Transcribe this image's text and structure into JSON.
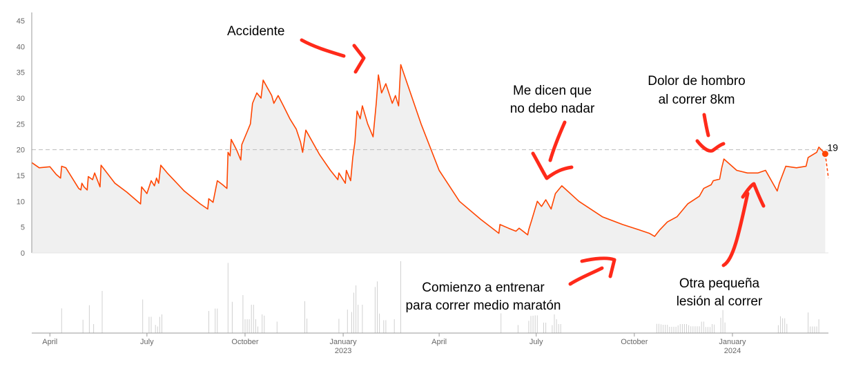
{
  "chart_data": {
    "type": "area",
    "title": "",
    "xlabel": "",
    "ylabel": "",
    "x_range": [
      "2022-03-15",
      "2024-03-31"
    ],
    "ylim": [
      0,
      45
    ],
    "yticks": [
      0,
      5,
      10,
      15,
      20,
      25,
      30,
      35,
      40,
      45
    ],
    "grid": false,
    "reference_line": {
      "y": 20,
      "style": "dashed"
    },
    "colors": {
      "line": "#ff4500",
      "area": "#f0f0f0",
      "annotation": "#ff2a1a",
      "axis": "#999999",
      "bars": "#d0d0d0"
    },
    "x_ticks": [
      {
        "date": "2022-04-01",
        "label": "April",
        "sublabel": ""
      },
      {
        "date": "2022-07-01",
        "label": "July",
        "sublabel": ""
      },
      {
        "date": "2022-10-01",
        "label": "October",
        "sublabel": ""
      },
      {
        "date": "2023-01-01",
        "label": "January",
        "sublabel": "2023"
      },
      {
        "date": "2023-04-01",
        "label": "April",
        "sublabel": ""
      },
      {
        "date": "2023-07-01",
        "label": "July",
        "sublabel": ""
      },
      {
        "date": "2023-10-01",
        "label": "October",
        "sublabel": ""
      },
      {
        "date": "2024-01-01",
        "label": "January",
        "sublabel": "2024"
      }
    ],
    "series": [
      {
        "points": [
          [
            "2022-03-15",
            17.5
          ],
          [
            "2022-03-22",
            16.5
          ],
          [
            "2022-04-01",
            16.7
          ],
          [
            "2022-04-07",
            15.2
          ],
          [
            "2022-04-11",
            14.5
          ],
          [
            "2022-04-12",
            16.8
          ],
          [
            "2022-04-16",
            16.5
          ],
          [
            "2022-04-28",
            12.5
          ],
          [
            "2022-04-30",
            12.2
          ],
          [
            "2022-05-01",
            13.5
          ],
          [
            "2022-05-03",
            12.8
          ],
          [
            "2022-05-06",
            12.2
          ],
          [
            "2022-05-07",
            14.8
          ],
          [
            "2022-05-11",
            14.2
          ],
          [
            "2022-05-13",
            15.5
          ],
          [
            "2022-05-18",
            12.8
          ],
          [
            "2022-05-19",
            17.0
          ],
          [
            "2022-06-01",
            13.5
          ],
          [
            "2022-06-12",
            11.8
          ],
          [
            "2022-06-25",
            9.5
          ],
          [
            "2022-06-26",
            12.8
          ],
          [
            "2022-07-01",
            11.5
          ],
          [
            "2022-07-05",
            14.0
          ],
          [
            "2022-07-08",
            13.0
          ],
          [
            "2022-07-10",
            14.5
          ],
          [
            "2022-07-12",
            13.5
          ],
          [
            "2022-07-14",
            17.0
          ],
          [
            "2022-07-20",
            15.5
          ],
          [
            "2022-08-05",
            12.0
          ],
          [
            "2022-08-20",
            9.5
          ],
          [
            "2022-08-27",
            8.5
          ],
          [
            "2022-08-28",
            10.5
          ],
          [
            "2022-09-01",
            9.8
          ],
          [
            "2022-09-05",
            14.0
          ],
          [
            "2022-09-10",
            13.2
          ],
          [
            "2022-09-14",
            12.5
          ],
          [
            "2022-09-15",
            19.5
          ],
          [
            "2022-09-17",
            18.8
          ],
          [
            "2022-09-18",
            22.0
          ],
          [
            "2022-09-23",
            20.0
          ],
          [
            "2022-09-27",
            18.0
          ],
          [
            "2022-09-28",
            21.0
          ],
          [
            "2022-10-03",
            23.5
          ],
          [
            "2022-10-06",
            25.0
          ],
          [
            "2022-10-08",
            29.0
          ],
          [
            "2022-10-12",
            31.0
          ],
          [
            "2022-10-16",
            30.0
          ],
          [
            "2022-10-18",
            33.5
          ],
          [
            "2022-10-22",
            32.0
          ],
          [
            "2022-10-26",
            30.5
          ],
          [
            "2022-10-28",
            29.0
          ],
          [
            "2022-11-01",
            30.5
          ],
          [
            "2022-11-06",
            28.5
          ],
          [
            "2022-11-12",
            26.0
          ],
          [
            "2022-11-18",
            24.0
          ],
          [
            "2022-11-22",
            21.5
          ],
          [
            "2022-11-24",
            19.5
          ],
          [
            "2022-11-27",
            23.8
          ],
          [
            "2022-12-10",
            19.0
          ],
          [
            "2022-12-20",
            16.0
          ],
          [
            "2022-12-27",
            14.2
          ],
          [
            "2022-12-28",
            15.5
          ],
          [
            "2023-01-03",
            13.5
          ],
          [
            "2023-01-04",
            16.0
          ],
          [
            "2023-01-08",
            14.0
          ],
          [
            "2023-01-10",
            18.5
          ],
          [
            "2023-01-12",
            21.5
          ],
          [
            "2023-01-14",
            27.5
          ],
          [
            "2023-01-17",
            26.0
          ],
          [
            "2023-01-19",
            28.5
          ],
          [
            "2023-01-24",
            25.0
          ],
          [
            "2023-01-29",
            22.5
          ],
          [
            "2023-02-01",
            29.0
          ],
          [
            "2023-02-03",
            34.5
          ],
          [
            "2023-02-06",
            31.0
          ],
          [
            "2023-02-10",
            32.8
          ],
          [
            "2023-02-16",
            29.0
          ],
          [
            "2023-02-19",
            30.5
          ],
          [
            "2023-02-22",
            28.5
          ],
          [
            "2023-02-24",
            36.5
          ],
          [
            "2023-03-15",
            25.0
          ],
          [
            "2023-04-01",
            16.0
          ],
          [
            "2023-04-20",
            10.0
          ],
          [
            "2023-05-10",
            6.5
          ],
          [
            "2023-05-27",
            3.8
          ],
          [
            "2023-05-28",
            5.5
          ],
          [
            "2023-06-05",
            4.8
          ],
          [
            "2023-06-12",
            4.2
          ],
          [
            "2023-06-15",
            4.8
          ],
          [
            "2023-06-23",
            3.5
          ],
          [
            "2023-06-24",
            4.5
          ],
          [
            "2023-06-27",
            6.5
          ],
          [
            "2023-07-02",
            10.0
          ],
          [
            "2023-07-06",
            9.0
          ],
          [
            "2023-07-10",
            10.3
          ],
          [
            "2023-07-15",
            8.5
          ],
          [
            "2023-07-19",
            11.5
          ],
          [
            "2023-07-25",
            13.0
          ],
          [
            "2023-08-10",
            10.0
          ],
          [
            "2023-09-01",
            7.0
          ],
          [
            "2023-09-20",
            5.5
          ],
          [
            "2023-10-05",
            4.5
          ],
          [
            "2023-10-15",
            3.8
          ],
          [
            "2023-10-20",
            3.2
          ],
          [
            "2023-10-25",
            4.5
          ],
          [
            "2023-11-01",
            6.0
          ],
          [
            "2023-11-10",
            7.0
          ],
          [
            "2023-11-20",
            9.5
          ],
          [
            "2023-12-01",
            11.0
          ],
          [
            "2023-12-05",
            12.5
          ],
          [
            "2023-12-12",
            13.2
          ],
          [
            "2023-12-14",
            14.0
          ],
          [
            "2023-12-20",
            14.3
          ],
          [
            "2023-12-22",
            16.5
          ],
          [
            "2023-12-24",
            18.2
          ],
          [
            "2024-01-05",
            16.0
          ],
          [
            "2024-01-15",
            15.5
          ],
          [
            "2024-01-25",
            15.5
          ],
          [
            "2024-02-01",
            16.0
          ],
          [
            "2024-02-12",
            12.0
          ],
          [
            "2024-02-14",
            13.5
          ],
          [
            "2024-02-20",
            16.8
          ],
          [
            "2024-03-01",
            16.5
          ],
          [
            "2024-03-10",
            16.8
          ],
          [
            "2024-03-12",
            18.5
          ],
          [
            "2024-03-20",
            19.5
          ],
          [
            "2024-03-22",
            20.5
          ],
          [
            "2024-03-28",
            19.2
          ]
        ],
        "projection": [
          [
            "2024-03-28",
            19.2
          ],
          [
            "2024-03-31",
            14.5
          ]
        ]
      }
    ],
    "last_value_label": "19",
    "annotations": [
      "Accidente",
      "Me dicen que no debo nadar",
      "Dolor de hombro al correr 8km",
      "Comienzo a entrenar para correr medio maratón",
      "Otra pequeña lesión al correr"
    ]
  },
  "annotations_text": {
    "accident": [
      "Accidente"
    ],
    "no_swim": [
      "Me dicen que",
      "no debo nadar"
    ],
    "shoulder": [
      "Dolor de hombro",
      "al correr 8km"
    ],
    "start_training": [
      "Comienzo a entrenar",
      "para correr medio maratón"
    ],
    "injury": [
      "Otra pequeña",
      "lesión al correr"
    ]
  }
}
